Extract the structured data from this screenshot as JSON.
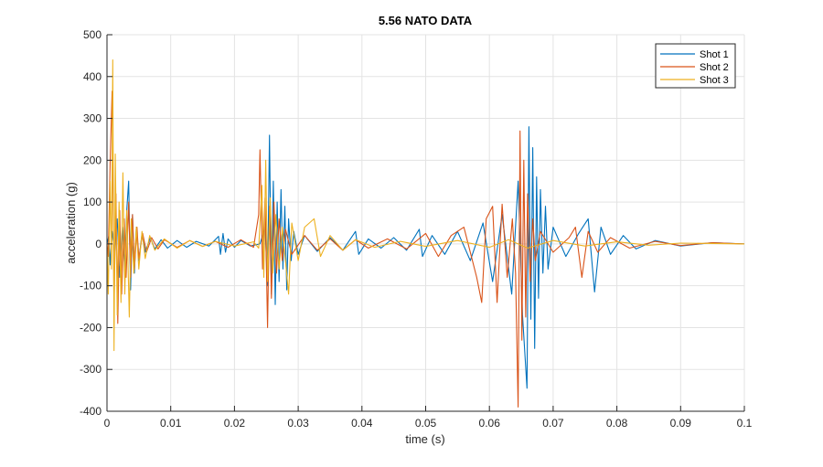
{
  "chart_data": {
    "type": "line",
    "title": "5.56 NATO DATA",
    "xlabel": "time (s)",
    "ylabel": "acceleration (g)",
    "xlim": [
      0,
      0.1
    ],
    "ylim": [
      -400,
      500
    ],
    "xticks": [
      0,
      0.01,
      0.02,
      0.03,
      0.04,
      0.05,
      0.06,
      0.07,
      0.08,
      0.09,
      0.1
    ],
    "xtick_labels": [
      "0",
      "0.01",
      "0.02",
      "0.03",
      "0.04",
      "0.05",
      "0.06",
      "0.07",
      "0.08",
      "0.09",
      "0.1"
    ],
    "yticks": [
      -400,
      -300,
      -200,
      -100,
      0,
      100,
      200,
      300,
      400,
      500
    ],
    "ytick_labels": [
      "-400",
      "-300",
      "-200",
      "-100",
      "0",
      "100",
      "200",
      "300",
      "400",
      "500"
    ],
    "grid": true,
    "legend_position": "top-right",
    "series": [
      {
        "name": "Shot 1",
        "color": "#0072BD",
        "points": [
          [
            0,
            0
          ],
          [
            0.0003,
            20
          ],
          [
            0.0005,
            -50
          ],
          [
            0.0008,
            30
          ],
          [
            0.0012,
            -20
          ],
          [
            0.0016,
            60
          ],
          [
            0.002,
            -80
          ],
          [
            0.0024,
            40
          ],
          [
            0.0028,
            -60
          ],
          [
            0.0031,
            80
          ],
          [
            0.0034,
            150
          ],
          [
            0.0037,
            -110
          ],
          [
            0.004,
            70
          ],
          [
            0.0043,
            -70
          ],
          [
            0.0046,
            40
          ],
          [
            0.005,
            -40
          ],
          [
            0.0055,
            25
          ],
          [
            0.006,
            -20
          ],
          [
            0.0068,
            15
          ],
          [
            0.0075,
            -12
          ],
          [
            0.0085,
            10
          ],
          [
            0.0095,
            -10
          ],
          [
            0.011,
            8
          ],
          [
            0.0125,
            -8
          ],
          [
            0.014,
            6
          ],
          [
            0.016,
            -5
          ],
          [
            0.0175,
            18
          ],
          [
            0.0178,
            -25
          ],
          [
            0.0182,
            25
          ],
          [
            0.0186,
            -20
          ],
          [
            0.019,
            12
          ],
          [
            0.02,
            -8
          ],
          [
            0.021,
            8
          ],
          [
            0.0225,
            -5
          ],
          [
            0.024,
            0
          ],
          [
            0.0248,
            40
          ],
          [
            0.0252,
            -100
          ],
          [
            0.0255,
            260
          ],
          [
            0.0258,
            -120
          ],
          [
            0.0261,
            150
          ],
          [
            0.0264,
            -145
          ],
          [
            0.0267,
            100
          ],
          [
            0.027,
            -90
          ],
          [
            0.0273,
            130
          ],
          [
            0.0276,
            -60
          ],
          [
            0.0279,
            90
          ],
          [
            0.0282,
            -110
          ],
          [
            0.0285,
            60
          ],
          [
            0.0289,
            -40
          ],
          [
            0.0293,
            30
          ],
          [
            0.03,
            -25
          ],
          [
            0.031,
            20
          ],
          [
            0.033,
            -18
          ],
          [
            0.035,
            15
          ],
          [
            0.037,
            -15
          ],
          [
            0.039,
            30
          ],
          [
            0.0395,
            -25
          ],
          [
            0.041,
            12
          ],
          [
            0.043,
            -10
          ],
          [
            0.045,
            15
          ],
          [
            0.047,
            -15
          ],
          [
            0.049,
            35
          ],
          [
            0.0495,
            -30
          ],
          [
            0.051,
            20
          ],
          [
            0.053,
            -25
          ],
          [
            0.055,
            30
          ],
          [
            0.057,
            -40
          ],
          [
            0.059,
            50
          ],
          [
            0.0605,
            -90
          ],
          [
            0.062,
            70
          ],
          [
            0.0635,
            -120
          ],
          [
            0.0645,
            150
          ],
          [
            0.0652,
            -170
          ],
          [
            0.0659,
            -345
          ],
          [
            0.0662,
            280
          ],
          [
            0.0665,
            -180
          ],
          [
            0.0668,
            230
          ],
          [
            0.0671,
            -250
          ],
          [
            0.0674,
            160
          ],
          [
            0.0677,
            -130
          ],
          [
            0.068,
            130
          ],
          [
            0.0684,
            -70
          ],
          [
            0.0688,
            90
          ],
          [
            0.0692,
            -60
          ],
          [
            0.07,
            40
          ],
          [
            0.072,
            -30
          ],
          [
            0.074,
            25
          ],
          [
            0.0755,
            60
          ],
          [
            0.0765,
            -115
          ],
          [
            0.0775,
            40
          ],
          [
            0.079,
            -25
          ],
          [
            0.081,
            20
          ],
          [
            0.083,
            -12
          ],
          [
            0.086,
            8
          ],
          [
            0.09,
            -5
          ],
          [
            0.095,
            3
          ],
          [
            0.1,
            0
          ]
        ]
      },
      {
        "name": "Shot 2",
        "color": "#D95319",
        "points": [
          [
            0,
            0
          ],
          [
            0.0002,
            -30
          ],
          [
            0.0005,
            200
          ],
          [
            0.0008,
            365
          ],
          [
            0.0011,
            -150
          ],
          [
            0.0014,
            120
          ],
          [
            0.0017,
            -190
          ],
          [
            0.002,
            80
          ],
          [
            0.0023,
            -120
          ],
          [
            0.0027,
            60
          ],
          [
            0.003,
            -80
          ],
          [
            0.0034,
            100
          ],
          [
            0.0037,
            -80
          ],
          [
            0.004,
            70
          ],
          [
            0.0043,
            -60
          ],
          [
            0.0047,
            40
          ],
          [
            0.005,
            -35
          ],
          [
            0.0056,
            25
          ],
          [
            0.0062,
            -20
          ],
          [
            0.007,
            15
          ],
          [
            0.008,
            -12
          ],
          [
            0.009,
            10
          ],
          [
            0.011,
            -8
          ],
          [
            0.013,
            8
          ],
          [
            0.015,
            -6
          ],
          [
            0.017,
            6
          ],
          [
            0.019,
            -8
          ],
          [
            0.021,
            10
          ],
          [
            0.023,
            -8
          ],
          [
            0.0238,
            70
          ],
          [
            0.024,
            225
          ],
          [
            0.0244,
            -60
          ],
          [
            0.0248,
            110
          ],
          [
            0.0252,
            -200
          ],
          [
            0.0255,
            90
          ],
          [
            0.0258,
            -130
          ],
          [
            0.0262,
            100
          ],
          [
            0.0266,
            -70
          ],
          [
            0.027,
            60
          ],
          [
            0.0275,
            -40
          ],
          [
            0.028,
            35
          ],
          [
            0.029,
            -25
          ],
          [
            0.031,
            20
          ],
          [
            0.033,
            -15
          ],
          [
            0.035,
            12
          ],
          [
            0.037,
            -15
          ],
          [
            0.039,
            10
          ],
          [
            0.041,
            -10
          ],
          [
            0.044,
            12
          ],
          [
            0.047,
            -12
          ],
          [
            0.05,
            25
          ],
          [
            0.052,
            -30
          ],
          [
            0.054,
            20
          ],
          [
            0.056,
            40
          ],
          [
            0.058,
            -80
          ],
          [
            0.0588,
            -140
          ],
          [
            0.0595,
            60
          ],
          [
            0.0605,
            90
          ],
          [
            0.0612,
            -140
          ],
          [
            0.062,
            95
          ],
          [
            0.0628,
            -80
          ],
          [
            0.0636,
            60
          ],
          [
            0.0641,
            -70
          ],
          [
            0.0645,
            -390
          ],
          [
            0.0648,
            270
          ],
          [
            0.0651,
            -230
          ],
          [
            0.0654,
            200
          ],
          [
            0.0657,
            -175
          ],
          [
            0.066,
            120
          ],
          [
            0.0664,
            -90
          ],
          [
            0.0668,
            60
          ],
          [
            0.0672,
            -40
          ],
          [
            0.068,
            30
          ],
          [
            0.07,
            -20
          ],
          [
            0.0725,
            15
          ],
          [
            0.0735,
            40
          ],
          [
            0.0745,
            -80
          ],
          [
            0.0755,
            30
          ],
          [
            0.077,
            -20
          ],
          [
            0.079,
            15
          ],
          [
            0.082,
            -10
          ],
          [
            0.086,
            6
          ],
          [
            0.09,
            -4
          ],
          [
            0.095,
            3
          ],
          [
            0.1,
            0
          ]
        ]
      },
      {
        "name": "Shot 3",
        "color": "#EDB120",
        "points": [
          [
            0,
            0
          ],
          [
            0.0002,
            -120
          ],
          [
            0.0005,
            150
          ],
          [
            0.0007,
            -60
          ],
          [
            0.0009,
            440
          ],
          [
            0.0011,
            -255
          ],
          [
            0.0013,
            215
          ],
          [
            0.0016,
            -170
          ],
          [
            0.0019,
            100
          ],
          [
            0.0022,
            -140
          ],
          [
            0.0025,
            170
          ],
          [
            0.0028,
            -120
          ],
          [
            0.0031,
            80
          ],
          [
            0.0035,
            -175
          ],
          [
            0.0038,
            60
          ],
          [
            0.0042,
            -70
          ],
          [
            0.0046,
            40
          ],
          [
            0.005,
            -60
          ],
          [
            0.0055,
            30
          ],
          [
            0.006,
            -35
          ],
          [
            0.0067,
            20
          ],
          [
            0.0075,
            -15
          ],
          [
            0.009,
            12
          ],
          [
            0.011,
            -10
          ],
          [
            0.013,
            8
          ],
          [
            0.015,
            -6
          ],
          [
            0.017,
            6
          ],
          [
            0.02,
            -5
          ],
          [
            0.023,
            5
          ],
          [
            0.0238,
            -10
          ],
          [
            0.0243,
            140
          ],
          [
            0.0246,
            -80
          ],
          [
            0.0249,
            200
          ],
          [
            0.0252,
            -90
          ],
          [
            0.0256,
            110
          ],
          [
            0.026,
            -70
          ],
          [
            0.0265,
            70
          ],
          [
            0.027,
            -60
          ],
          [
            0.0275,
            40
          ],
          [
            0.0285,
            -120
          ],
          [
            0.029,
            50
          ],
          [
            0.03,
            -40
          ],
          [
            0.031,
            40
          ],
          [
            0.0325,
            60
          ],
          [
            0.0335,
            -30
          ],
          [
            0.035,
            20
          ],
          [
            0.037,
            -15
          ],
          [
            0.039,
            10
          ],
          [
            0.042,
            -8
          ],
          [
            0.046,
            6
          ],
          [
            0.05,
            -6
          ],
          [
            0.055,
            8
          ],
          [
            0.06,
            -8
          ],
          [
            0.063,
            10
          ],
          [
            0.066,
            -10
          ],
          [
            0.07,
            8
          ],
          [
            0.075,
            -5
          ],
          [
            0.08,
            5
          ],
          [
            0.085,
            -3
          ],
          [
            0.09,
            2
          ],
          [
            0.1,
            0
          ]
        ]
      }
    ]
  }
}
